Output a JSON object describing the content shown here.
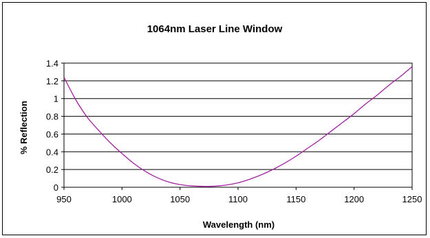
{
  "chart_data": {
    "type": "line",
    "title": "1064nm Laser Line Window",
    "xlabel": "Wavelength (nm)",
    "ylabel": "% Reflection",
    "xlim": [
      950,
      1250
    ],
    "ylim": [
      0,
      1.4
    ],
    "x_ticks": [
      950,
      1000,
      1050,
      1100,
      1150,
      1200,
      1250
    ],
    "y_ticks": [
      0,
      0.2,
      0.4,
      0.6,
      0.8,
      1,
      1.2,
      1.4
    ],
    "y_tick_labels": [
      "0",
      "0.2",
      "0.4",
      "0.6",
      "0.8",
      "1",
      "1.2",
      "1.4"
    ],
    "grid": "horizontal",
    "legend": "none",
    "series": [
      {
        "color": "#a020a0",
        "x": [
          950,
          960,
          970,
          980,
          990,
          1000,
          1010,
          1020,
          1030,
          1040,
          1050,
          1060,
          1070,
          1080,
          1090,
          1100,
          1110,
          1120,
          1130,
          1140,
          1150,
          1160,
          1170,
          1180,
          1190,
          1200,
          1210,
          1220,
          1230,
          1240,
          1250
        ],
        "y": [
          1.24,
          0.99,
          0.79,
          0.64,
          0.5,
          0.38,
          0.27,
          0.18,
          0.11,
          0.06,
          0.03,
          0.015,
          0.01,
          0.012,
          0.025,
          0.05,
          0.09,
          0.14,
          0.2,
          0.27,
          0.35,
          0.44,
          0.53,
          0.63,
          0.73,
          0.83,
          0.94,
          1.04,
          1.15,
          1.25,
          1.36
        ]
      }
    ]
  }
}
